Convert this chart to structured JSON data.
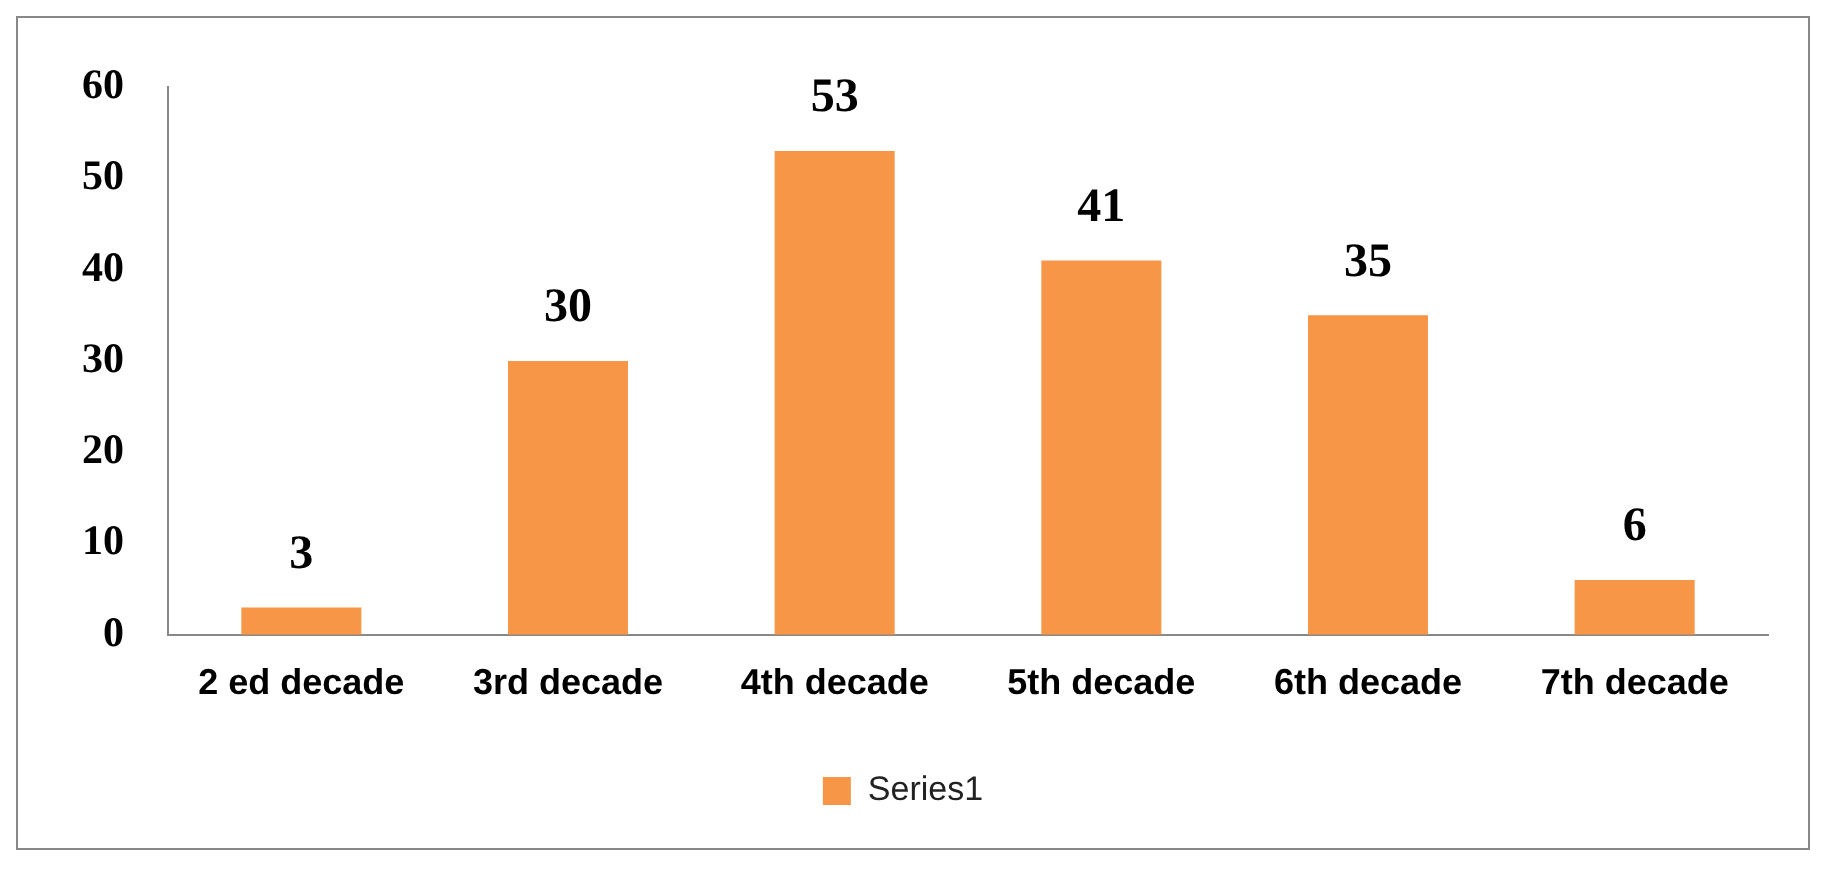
{
  "chart_data": {
    "type": "bar",
    "categories": [
      "2 ed decade",
      "3rd decade",
      "4th decade",
      "5th decade",
      "6th decade",
      "7th decade"
    ],
    "series": [
      {
        "name": "Series1",
        "color": "#f79646",
        "values": [
          3,
          30,
          53,
          41,
          35,
          6
        ]
      }
    ],
    "ylim": [
      0,
      60
    ],
    "yticks": [
      0,
      10,
      20,
      30,
      40,
      50,
      60
    ],
    "grid": false,
    "legend": "bottom",
    "data_labels": true
  }
}
